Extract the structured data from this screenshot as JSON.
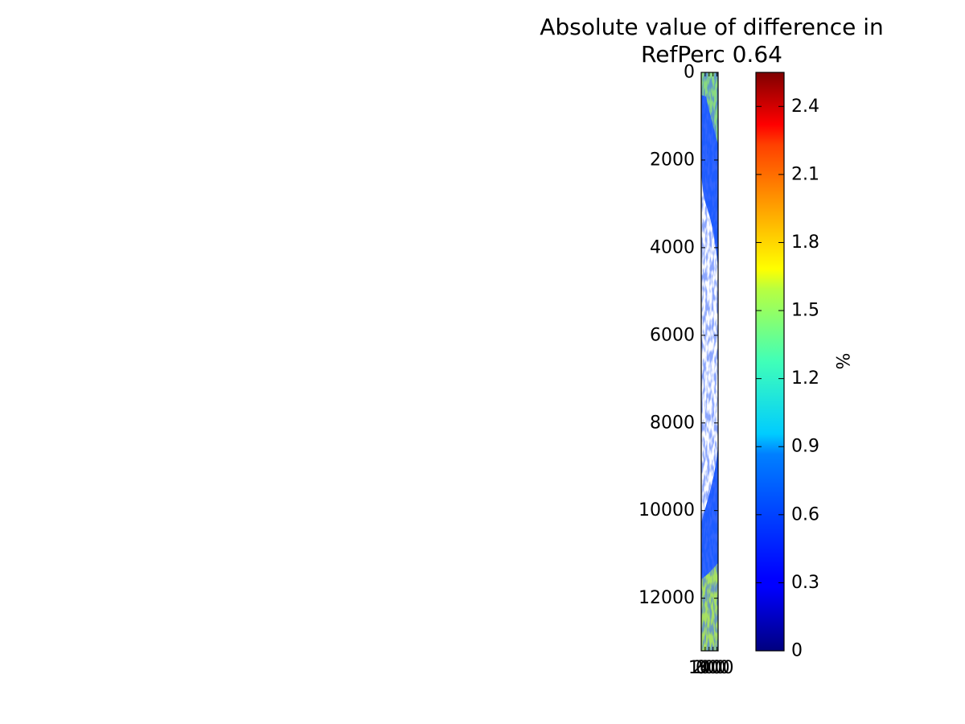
{
  "chart_data": {
    "type": "heatmap",
    "title": "Absolute value of difference in",
    "subtitle": "RefPerc 0.64",
    "xlabel": "",
    "ylabel": "",
    "y_ticks": [
      "0",
      "2000",
      "4000",
      "6000",
      "8000",
      "10000",
      "12000"
    ],
    "x_ticks": [
      "0",
      "100",
      "200",
      "300",
      "400"
    ],
    "x_range": [
      0,
      430
    ],
    "y_range": [
      13200,
      0
    ],
    "grid": false,
    "colormap": "jet",
    "colorbar": {
      "label": "%",
      "range": [
        0,
        2.55
      ],
      "ticks": [
        "0",
        "0.3",
        "0.6",
        "0.9",
        "1.2",
        "1.5",
        "1.8",
        "2.1",
        "2.4"
      ],
      "placement": "right"
    },
    "colors": {
      "swath_low": "#0a1eff",
      "swath_mid": "#20c8ff",
      "swath_high": "#c8f040"
    }
  }
}
